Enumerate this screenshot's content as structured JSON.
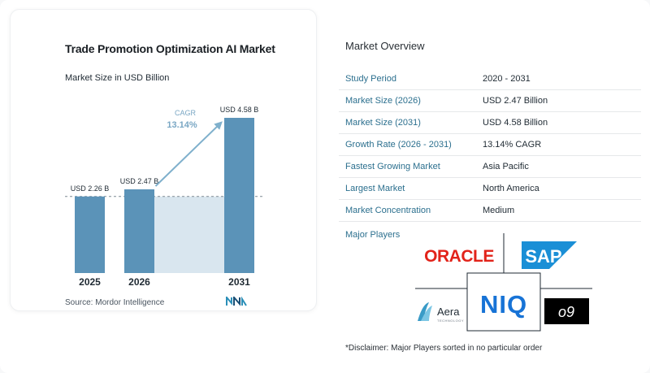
{
  "chart": {
    "title": "Trade Promotion Optimization AI Market",
    "subtitle": "Market Size in USD Billion",
    "source": "Source:  Mordor Intelligence",
    "cagr_label": "CAGR",
    "cagr_value": "13.14%"
  },
  "chart_data": {
    "type": "bar",
    "categories": [
      "2025",
      "2026",
      "2031"
    ],
    "values": [
      2.26,
      2.47,
      4.58
    ],
    "data_labels": [
      "USD 2.26 B",
      "USD 2.47 B",
      "USD 4.58 B"
    ],
    "title": "Trade Promotion Optimization AI Market",
    "subtitle": "Market Size in USD Billion",
    "xlabel": "",
    "ylabel": "",
    "ylim": [
      0,
      4.58
    ],
    "annotation": "CAGR 13.14%",
    "colors": {
      "bar": "#5b93b8",
      "bar_light": "#d9e6ef",
      "arrow": "#7fb0cc",
      "cagr_text": "#7aa7c4"
    }
  },
  "overview": {
    "title": "Market Overview",
    "rows": [
      {
        "label": "Study Period",
        "value": "2020 - 2031"
      },
      {
        "label": "Market Size (2026)",
        "value": "USD 2.47 Billion"
      },
      {
        "label": "Market Size (2031)",
        "value": "USD 4.58 Billion"
      },
      {
        "label": "Growth Rate (2026 - 2031)",
        "value": "13.14% CAGR"
      },
      {
        "label": "Fastest Growing Market",
        "value": "Asia Pacific"
      },
      {
        "label": "Largest Market",
        "value": "North America"
      },
      {
        "label": "Market Concentration",
        "value": "Medium"
      }
    ],
    "players_label": "Major Players",
    "players": {
      "oracle": "ORACLE",
      "sap": "SAP",
      "niq": "NIQ",
      "aera": "Aera",
      "aera_sub": "TECHNOLOGY",
      "o9": "o9"
    },
    "disclaimer": "*Disclaimer: Major Players sorted in no particular order"
  }
}
